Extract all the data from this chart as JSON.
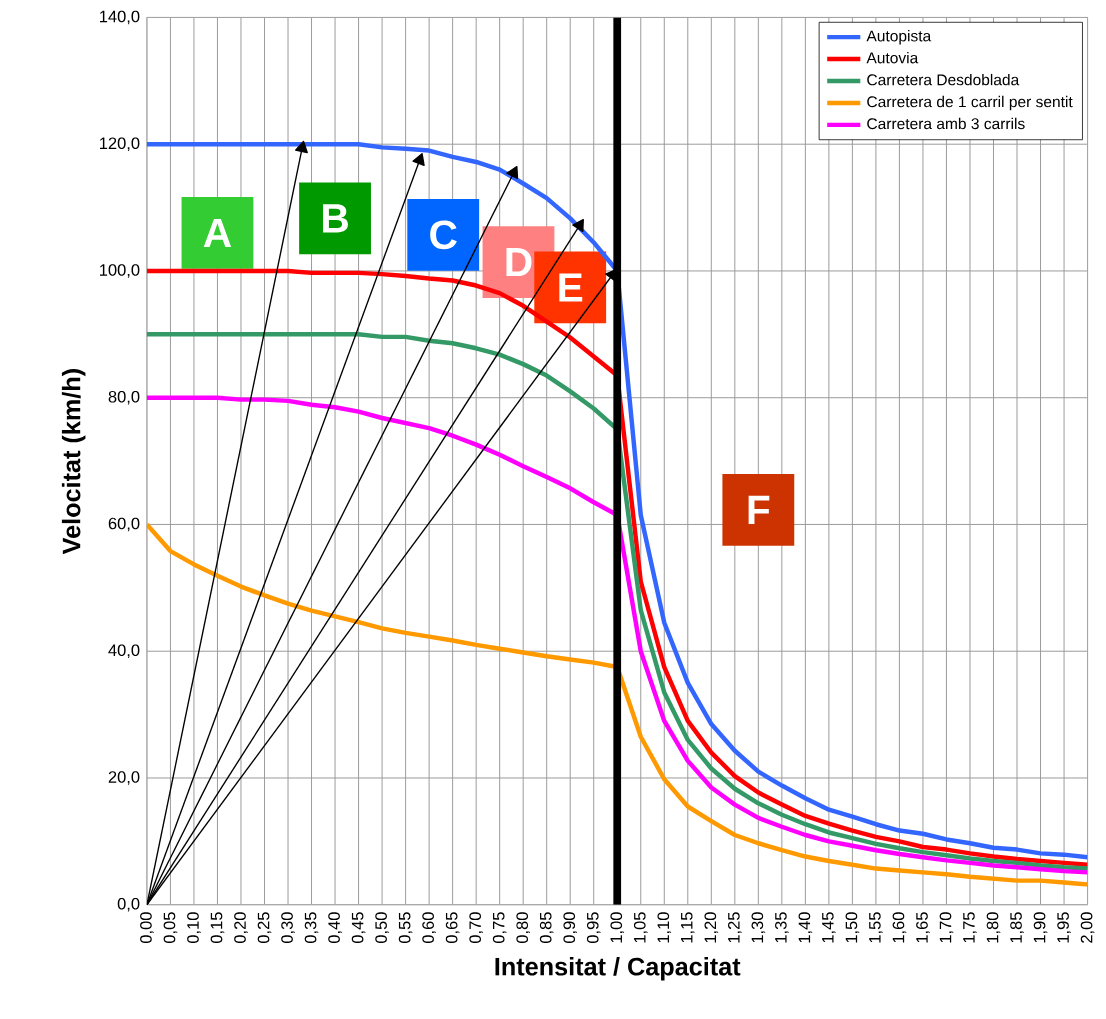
{
  "chart_data": {
    "type": "line",
    "xlabel": "Intensitat / Capacitat",
    "ylabel": "Velocitat (km/h)",
    "x": [
      0,
      0.05,
      0.1,
      0.15,
      0.2,
      0.25,
      0.3,
      0.35,
      0.4,
      0.45,
      0.5,
      0.55,
      0.6,
      0.65,
      0.7,
      0.75,
      0.8,
      0.85,
      0.9,
      0.95,
      1.0,
      1.05,
      1.1,
      1.15,
      1.2,
      1.25,
      1.3,
      1.35,
      1.4,
      1.45,
      1.5,
      1.55,
      1.6,
      1.65,
      1.7,
      1.75,
      1.8,
      1.85,
      1.9,
      1.95,
      2.0
    ],
    "series": [
      {
        "name": "Autopista",
        "color": "#3366ff",
        "values": [
          120,
          120,
          120,
          120,
          120,
          120,
          120,
          120,
          120,
          120,
          119.5,
          119.3,
          119,
          118,
          117.2,
          116,
          113.8,
          111.5,
          108.3,
          104.5,
          100,
          61.5,
          44.5,
          35,
          28.5,
          24.3,
          21,
          18.8,
          16.8,
          15,
          13.9,
          12.7,
          11.7,
          11.2,
          10.3,
          9.7,
          9.0,
          8.7,
          8.1,
          7.9,
          7.5
        ]
      },
      {
        "name": "Autovia",
        "color": "#ff0000",
        "values": [
          100,
          100,
          100,
          100,
          100,
          100,
          100,
          99.7,
          99.7,
          99.7,
          99.5,
          99.2,
          98.8,
          98.5,
          97.7,
          96.5,
          94.5,
          92,
          89.5,
          86.5,
          83.5,
          51,
          37.5,
          29,
          24,
          20.3,
          17.7,
          15.8,
          14,
          12.8,
          11.7,
          10.7,
          10,
          9.1,
          8.7,
          8.1,
          7.6,
          7.2,
          6.9,
          6.6,
          6.3
        ]
      },
      {
        "name": "Carretera Desdoblada",
        "color": "#339966",
        "values": [
          90,
          90,
          90,
          90,
          90,
          90,
          90,
          90,
          90,
          90,
          89.6,
          89.6,
          89,
          88.6,
          87.8,
          86.8,
          85.3,
          83.5,
          81,
          78.3,
          75,
          46.5,
          33.5,
          26,
          21.5,
          18.3,
          16,
          14.2,
          12.7,
          11.4,
          10.5,
          9.6,
          8.9,
          8.3,
          7.8,
          7.3,
          6.9,
          6.6,
          6.2,
          5.9,
          5.7
        ]
      },
      {
        "name": "Carretera de 1 carril per sentit",
        "color": "#ff9900",
        "values": [
          60,
          55.8,
          53.7,
          51.9,
          50.2,
          48.8,
          47.5,
          46.4,
          45.5,
          44.6,
          43.6,
          42.9,
          42.3,
          41.7,
          41,
          40.4,
          39.8,
          39.2,
          38.7,
          38.2,
          37.5,
          26.5,
          19.8,
          15.5,
          13.2,
          11,
          9.7,
          8.6,
          7.6,
          6.9,
          6.3,
          5.7,
          5.4,
          5.1,
          4.8,
          4.4,
          4.1,
          3.8,
          3.8,
          3.5,
          3.2
        ]
      },
      {
        "name": "Carretera amb 3 carrils",
        "color": "#ff00ff",
        "values": [
          80,
          80,
          80,
          80,
          79.7,
          79.7,
          79.5,
          78.9,
          78.5,
          77.8,
          76.8,
          76,
          75.2,
          74,
          72.6,
          71,
          69.2,
          67.5,
          65.7,
          63.5,
          61.5,
          40,
          29,
          22.7,
          18.5,
          15.8,
          13.7,
          12.3,
          11,
          10,
          9.3,
          8.6,
          8,
          7.5,
          7,
          6.6,
          6.2,
          5.9,
          5.6,
          5.3,
          5.1
        ]
      },
      {
        "type": "line",
        "color": "#000000",
        "marker": "triangle",
        "x": [
          0,
          0.33
        ],
        "values": [
          0,
          119.4
        ]
      },
      {
        "type": "line",
        "color": "#000000",
        "marker": "triangle",
        "x": [
          0,
          0.58
        ],
        "values": [
          0,
          117.5
        ]
      },
      {
        "type": "line",
        "color": "#000000",
        "marker": "triangle",
        "x": [
          0,
          0.78
        ],
        "values": [
          0,
          115.5
        ]
      },
      {
        "type": "line",
        "color": "#000000",
        "marker": "triangle",
        "x": [
          0,
          0.92
        ],
        "values": [
          0,
          107.2
        ]
      },
      {
        "type": "line",
        "color": "#000000",
        "marker": "triangle",
        "x": [
          0,
          0.99
        ],
        "values": [
          0,
          99.4
        ]
      }
    ],
    "annotations": [
      "A",
      "B",
      "C",
      "D",
      "E",
      "F"
    ],
    "ref_lines": [
      {
        "axis": "x",
        "value": 1.0,
        "color": "#000000"
      }
    ],
    "xlim": [
      0,
      2
    ],
    "ylim": [
      0,
      140
    ],
    "xticks": [
      {
        "value": 0,
        "label": "0,00"
      },
      {
        "value": 0.05,
        "label": "0,05"
      },
      {
        "value": 0.1,
        "label": "0,10"
      },
      {
        "value": 0.15,
        "label": "0,15"
      },
      {
        "value": 0.2,
        "label": "0,20"
      },
      {
        "value": 0.25,
        "label": "0,25"
      },
      {
        "value": 0.3,
        "label": "0,30"
      },
      {
        "value": 0.35,
        "label": "0,35"
      },
      {
        "value": 0.4,
        "label": "0,40"
      },
      {
        "value": 0.45,
        "label": "0,45"
      },
      {
        "value": 0.5,
        "label": "0,50"
      },
      {
        "value": 0.55,
        "label": "0,55"
      },
      {
        "value": 0.6,
        "label": "0,60"
      },
      {
        "value": 0.65,
        "label": "0,65"
      },
      {
        "value": 0.7,
        "label": "0,70"
      },
      {
        "value": 0.75,
        "label": "0,75"
      },
      {
        "value": 0.8,
        "label": "0,80"
      },
      {
        "value": 0.85,
        "label": "0,85"
      },
      {
        "value": 0.9,
        "label": "0,90"
      },
      {
        "value": 0.95,
        "label": "0,95"
      },
      {
        "value": 1.0,
        "label": "1,00"
      },
      {
        "value": 1.05,
        "label": "1,05"
      },
      {
        "value": 1.1,
        "label": "1,10"
      },
      {
        "value": 1.15,
        "label": "1,15"
      },
      {
        "value": 1.2,
        "label": "1,20"
      },
      {
        "value": 1.25,
        "label": "1,25"
      },
      {
        "value": 1.3,
        "label": "1,30"
      },
      {
        "value": 1.35,
        "label": "1,35"
      },
      {
        "value": 1.4,
        "label": "1,40"
      },
      {
        "value": 1.45,
        "label": "1,45"
      },
      {
        "value": 1.5,
        "label": "1,50"
      },
      {
        "value": 1.55,
        "label": "1,55"
      },
      {
        "value": 1.6,
        "label": "1,60"
      },
      {
        "value": 1.65,
        "label": "1,65"
      },
      {
        "value": 1.7,
        "label": "1,70"
      },
      {
        "value": 1.75,
        "label": "1,75"
      },
      {
        "value": 1.8,
        "label": "1,80"
      },
      {
        "value": 1.85,
        "label": "1,85"
      },
      {
        "value": 1.9,
        "label": "1,90"
      },
      {
        "value": 1.95,
        "label": "1,95"
      },
      {
        "value": 2.0,
        "label": "2,00"
      }
    ],
    "yticks": [
      {
        "value": 0,
        "label": "0,0"
      },
      {
        "value": 20,
        "label": "20,0"
      },
      {
        "value": 40,
        "label": "40,0"
      },
      {
        "value": 60,
        "label": "60,0"
      },
      {
        "value": 80,
        "label": "80,0"
      },
      {
        "value": 100,
        "label": "100,0"
      },
      {
        "value": 120,
        "label": "120,0"
      },
      {
        "value": 140,
        "label": "140,0"
      }
    ],
    "grid": true,
    "legend": "top right",
    "line_style": "solid"
  }
}
